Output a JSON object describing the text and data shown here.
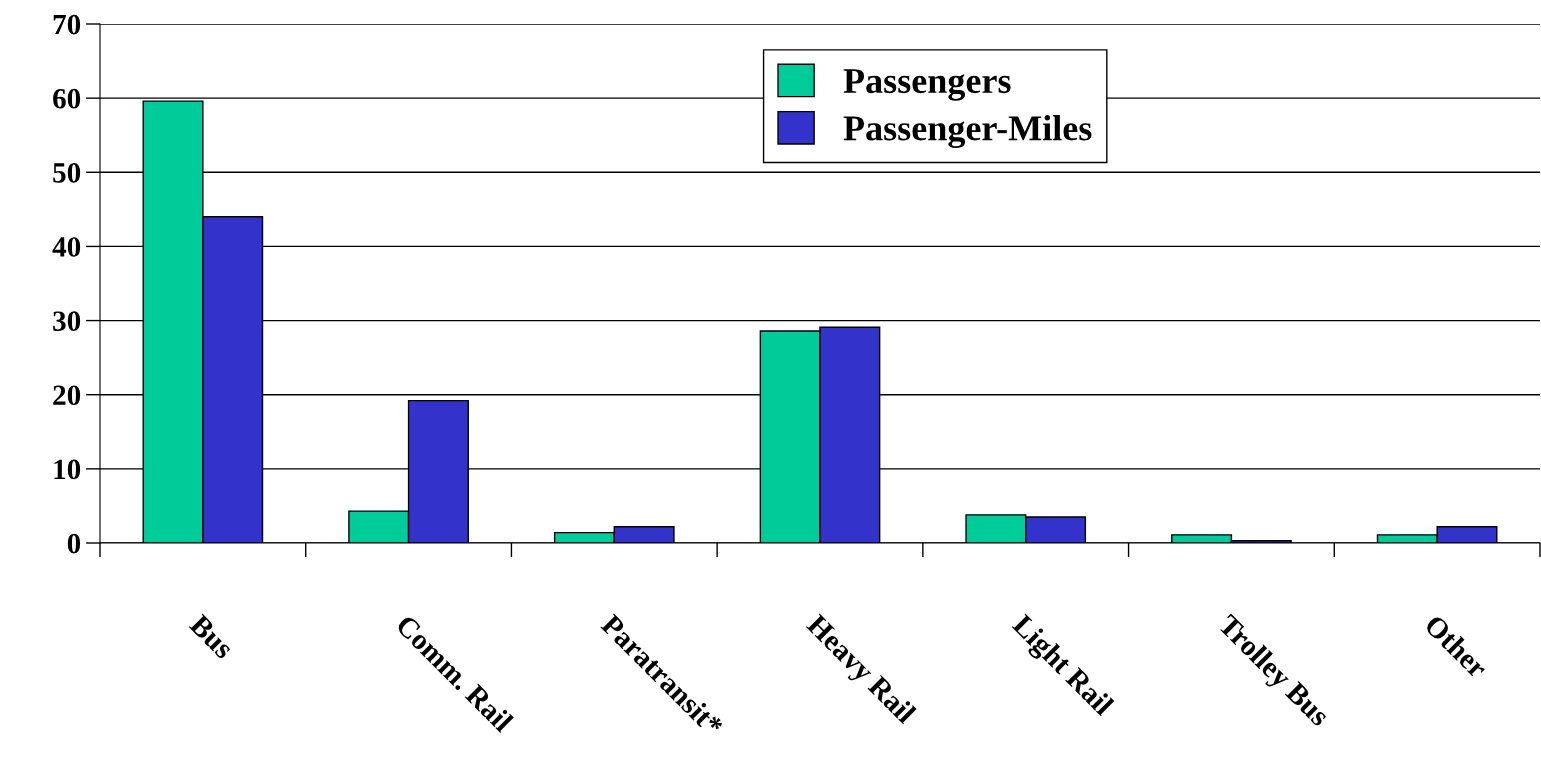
{
  "chart_data": {
    "type": "bar",
    "categories": [
      "Bus",
      "Comm. Rail",
      "Paratransit*",
      "Heavy Rail",
      "Light Rail",
      "Trolley Bus",
      "Other"
    ],
    "series": [
      {
        "name": "Passengers",
        "color": "#00cc99",
        "values": [
          59.6,
          4.3,
          1.4,
          28.6,
          3.8,
          1.1,
          1.1
        ]
      },
      {
        "name": "Passenger-Miles",
        "color": "#3333cc",
        "values": [
          44.0,
          19.2,
          2.2,
          29.1,
          3.5,
          0.3,
          2.2
        ]
      }
    ],
    "ylim": [
      0,
      70
    ],
    "yticks": [
      0,
      10,
      20,
      30,
      40,
      50,
      60,
      70
    ],
    "grid": "y",
    "legend": "top"
  }
}
